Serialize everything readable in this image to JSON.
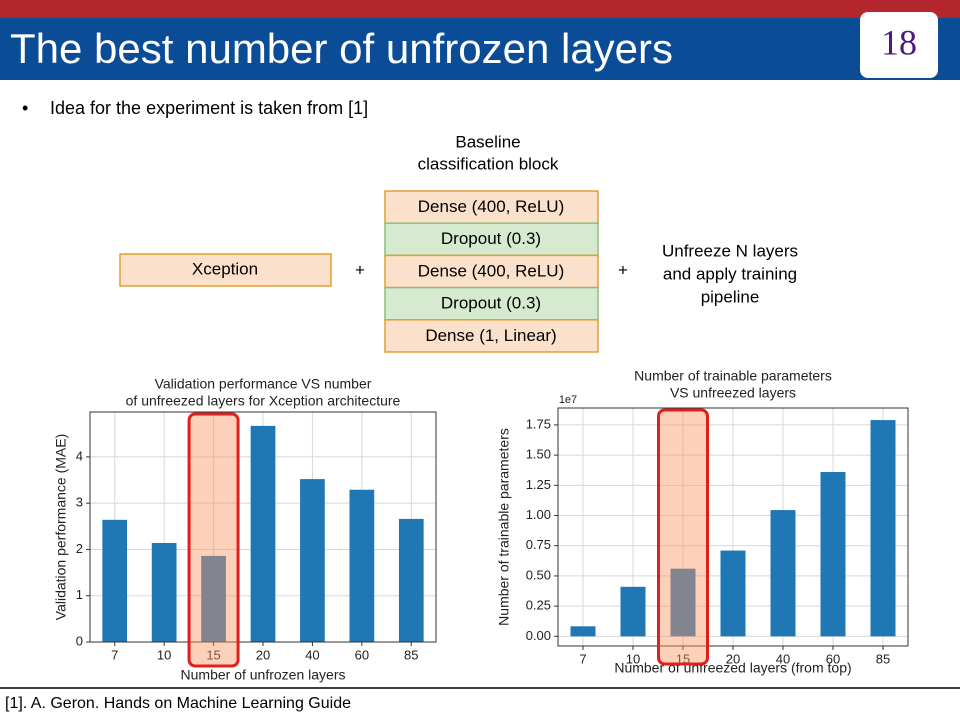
{
  "header": {
    "title": "The best number of unfrozen layers",
    "page_number": "18"
  },
  "bullet": "Idea for the experiment is taken from [1]",
  "diagram": {
    "block_title": [
      "Baseline",
      "classification block"
    ],
    "backbone": "Xception",
    "plus": "+",
    "layers": [
      "Dense (400, ReLU)",
      "Dropout (0.3)",
      "Dense (400, ReLU)",
      "Dropout (0.3)",
      "Dense (1, Linear)"
    ],
    "note": [
      "Unfreeze N layers",
      "and apply training",
      "pipeline"
    ]
  },
  "chart_data": [
    {
      "type": "bar",
      "title": [
        "Validation performance VS number",
        "of unfreezed layers for Xception architecture"
      ],
      "x_label": "Number of unfrozen layers",
      "y_label": "Validation performance (MAE)",
      "categories": [
        "7",
        "10",
        "15",
        "20",
        "40",
        "60",
        "85"
      ],
      "values": [
        2.64,
        2.14,
        1.86,
        4.67,
        3.52,
        3.29,
        2.66
      ],
      "color": "#1f77b4",
      "ylim": [
        0,
        4.97
      ],
      "yticks": [
        0,
        1,
        2,
        3,
        4
      ],
      "grid": true
    },
    {
      "type": "bar",
      "title": [
        "Number of trainable parameters",
        "VS unfreezed layers"
      ],
      "x_label": "Number of unfreezed layers (from top)",
      "y_label": "Number of trainable parameters",
      "offset_label": "1e7",
      "categories": [
        "7",
        "10",
        "15",
        "20",
        "40",
        "60",
        "85"
      ],
      "values": [
        0.083,
        0.41,
        0.56,
        0.71,
        1.045,
        1.36,
        1.79
      ],
      "color": "#1f77b4",
      "ylim": [
        -0.08,
        1.89
      ],
      "yticks": [
        {
          "value": 0,
          "label": "0.00"
        },
        {
          "value": 0.25,
          "label": "0.25"
        },
        {
          "value": 0.5,
          "label": "0.50"
        },
        {
          "value": 0.75,
          "label": "0.75"
        },
        {
          "value": 1,
          "label": "1.00"
        },
        {
          "value": 1.25,
          "label": "1.25"
        },
        {
          "value": 1.5,
          "label": "1.50"
        },
        {
          "value": 1.75,
          "label": "1.75"
        }
      ],
      "grid": true
    }
  ],
  "footer": "[1]. A. Geron. Hands on Machine Learning Guide"
}
